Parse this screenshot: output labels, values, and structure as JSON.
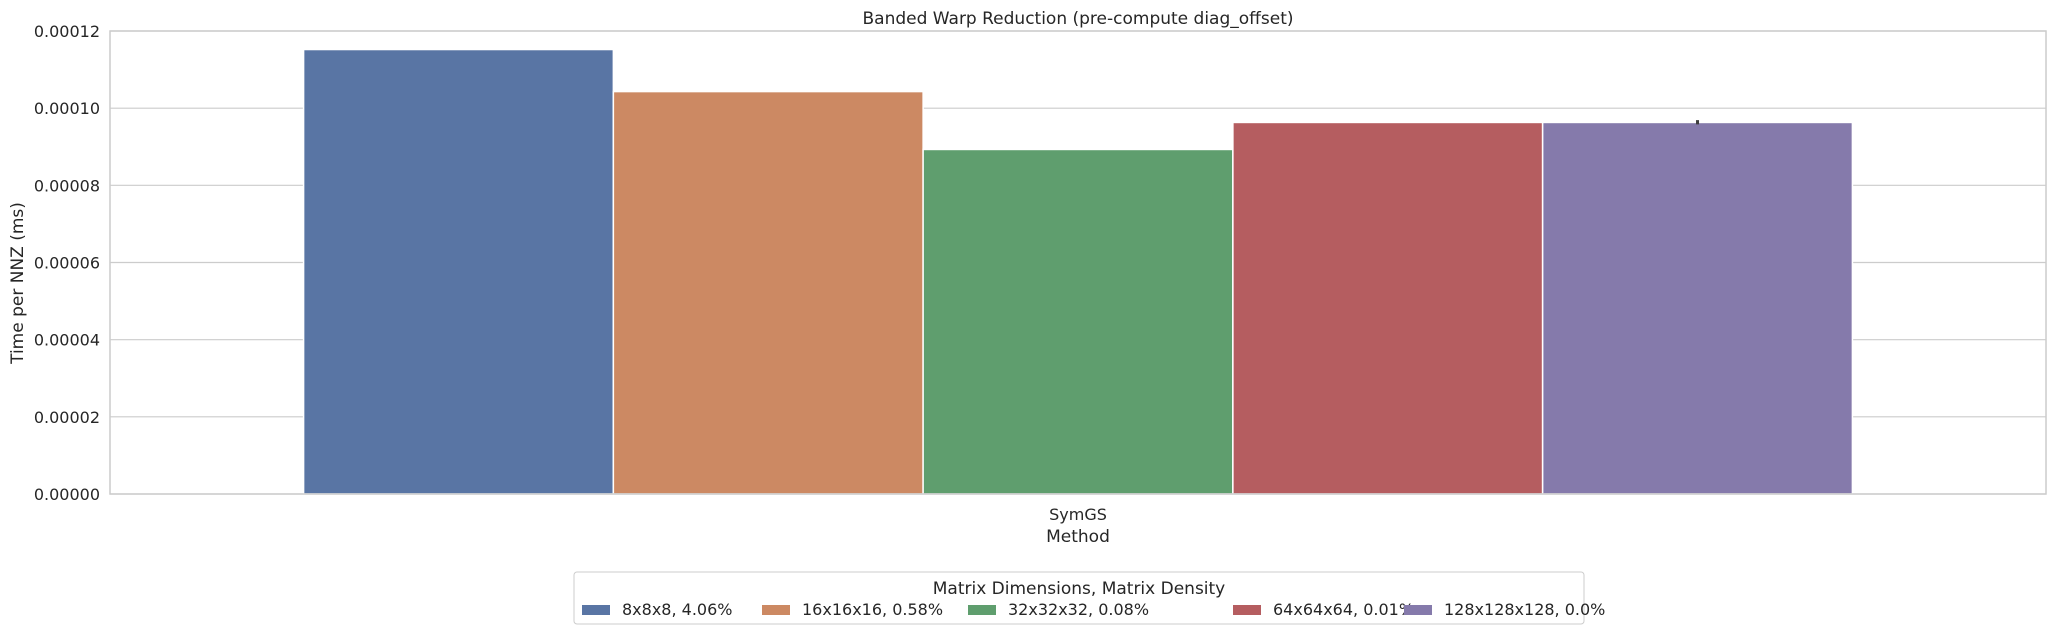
{
  "chart_data": {
    "type": "bar",
    "title": "Banded Warp Reduction (pre-compute diag_offset)",
    "xlabel": "Method",
    "ylabel": "Time per NNZ (ms)",
    "categories": [
      "SymGS"
    ],
    "ylim": [
      0,
      0.00012
    ],
    "yticks": [
      "0.00000",
      "0.00002",
      "0.00004",
      "0.00006",
      "0.00008",
      "0.00010",
      "0.00012"
    ],
    "ytick_values": [
      0,
      2e-05,
      4e-05,
      6e-05,
      8e-05,
      0.0001,
      0.00012
    ],
    "grid": true,
    "legend": {
      "title": "Matrix Dimensions, Matrix Density",
      "placement": "bottom-center"
    },
    "series": [
      {
        "name": "8x8x8, 4.06%",
        "values": [
          0.0001152
        ],
        "color": "#5975a4"
      },
      {
        "name": "16x16x16, 0.58%",
        "values": [
          0.0001043
        ],
        "color": "#cc8963"
      },
      {
        "name": "32x32x32, 0.08%",
        "values": [
          8.93e-05
        ],
        "color": "#5f9e6e"
      },
      {
        "name": "64x64x64, 0.01%",
        "values": [
          9.63e-05
        ],
        "color": "#b55d60"
      },
      {
        "name": "128x128x128, 0.0%",
        "values": [
          9.63e-05
        ],
        "color": "#857aab",
        "error": [
          9.58e-05,
          9.69e-05
        ]
      }
    ]
  }
}
